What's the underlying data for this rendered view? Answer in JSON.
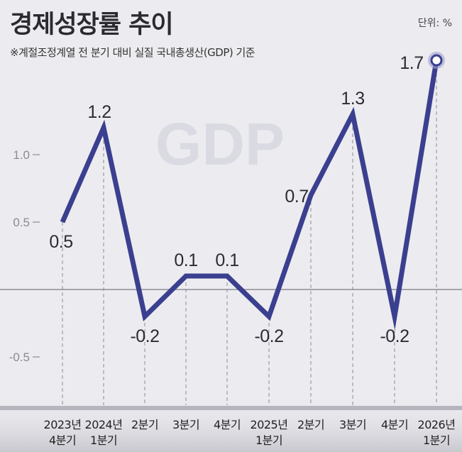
{
  "header": {
    "title": "경제성장률 추이",
    "subtitle": "※계절조정계열 전 분기 대비 실질 국내총생산(GDP) 기준",
    "unit": "단위: %"
  },
  "watermark": "GDP",
  "colors": {
    "line": "#3b3f8f",
    "background": "#ececf0",
    "grid": "#888888"
  },
  "chart_data": {
    "type": "line",
    "title": "경제성장률 추이",
    "xlabel": "",
    "ylabel": "",
    "unit": "%",
    "categories": [
      [
        "2023년",
        "4분기"
      ],
      [
        "2024년",
        "1분기"
      ],
      [
        "2분기"
      ],
      [
        "3분기"
      ],
      [
        "4분기"
      ],
      [
        "2025년",
        "1분기"
      ],
      [
        "2분기"
      ],
      [
        "3분기"
      ],
      [
        "4분기"
      ],
      [
        "2026년",
        "1분기"
      ]
    ],
    "values": [
      0.5,
      1.2,
      -0.2,
      0.1,
      0.1,
      -0.2,
      0.7,
      1.3,
      -0.2,
      1.7
    ],
    "value_labels": [
      "0.5",
      "1.2",
      "-0.2",
      "0.1",
      "0.1",
      "-0.2",
      "0.7",
      "1.3",
      "-0.2",
      "1.7"
    ],
    "yticks": [
      {
        "value": 1.0,
        "label": "1.0"
      },
      {
        "value": 0.5,
        "label": "0.5"
      },
      {
        "value": -0.5,
        "label": "-0.5"
      }
    ],
    "ylim": [
      -0.7,
      1.9
    ],
    "zero_line": true,
    "highlight_last_point": true
  }
}
